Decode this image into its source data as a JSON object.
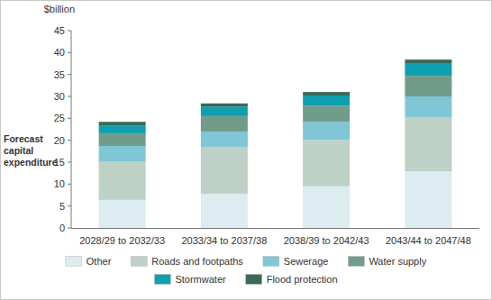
{
  "chart_data": {
    "type": "bar",
    "stacked": true,
    "y_unit_label": "$billion",
    "y_label": "Forecast capital expenditure",
    "categories": [
      "2028/29 to 2032/33",
      "2033/34 to 2037/38",
      "2038/39 to 2042/43",
      "2043/44 to 2047/48"
    ],
    "series": [
      {
        "name": "Other",
        "color": "#dcecf1",
        "values": [
          6.4,
          7.8,
          9.5,
          12.9
        ]
      },
      {
        "name": "Roads and footpaths",
        "color": "#bdd1c6",
        "values": [
          8.8,
          10.7,
          10.6,
          12.4
        ]
      },
      {
        "name": "Sewerage",
        "color": "#7fc6d6",
        "values": [
          3.5,
          3.5,
          4.1,
          4.7
        ]
      },
      {
        "name": "Water supply",
        "color": "#709c89",
        "values": [
          2.9,
          3.5,
          3.7,
          4.7
        ]
      },
      {
        "name": "Stormwater",
        "color": "#0ea0b0",
        "values": [
          1.8,
          2.2,
          2.3,
          2.9
        ]
      },
      {
        "name": "Flood protection",
        "color": "#3a6a57",
        "values": [
          0.8,
          0.7,
          0.8,
          0.8
        ]
      }
    ],
    "ylim": [
      0,
      45
    ],
    "yticks": [
      0,
      5,
      10,
      15,
      20,
      25,
      30,
      35,
      40,
      45
    ],
    "grid": false,
    "legend": "bottom"
  }
}
